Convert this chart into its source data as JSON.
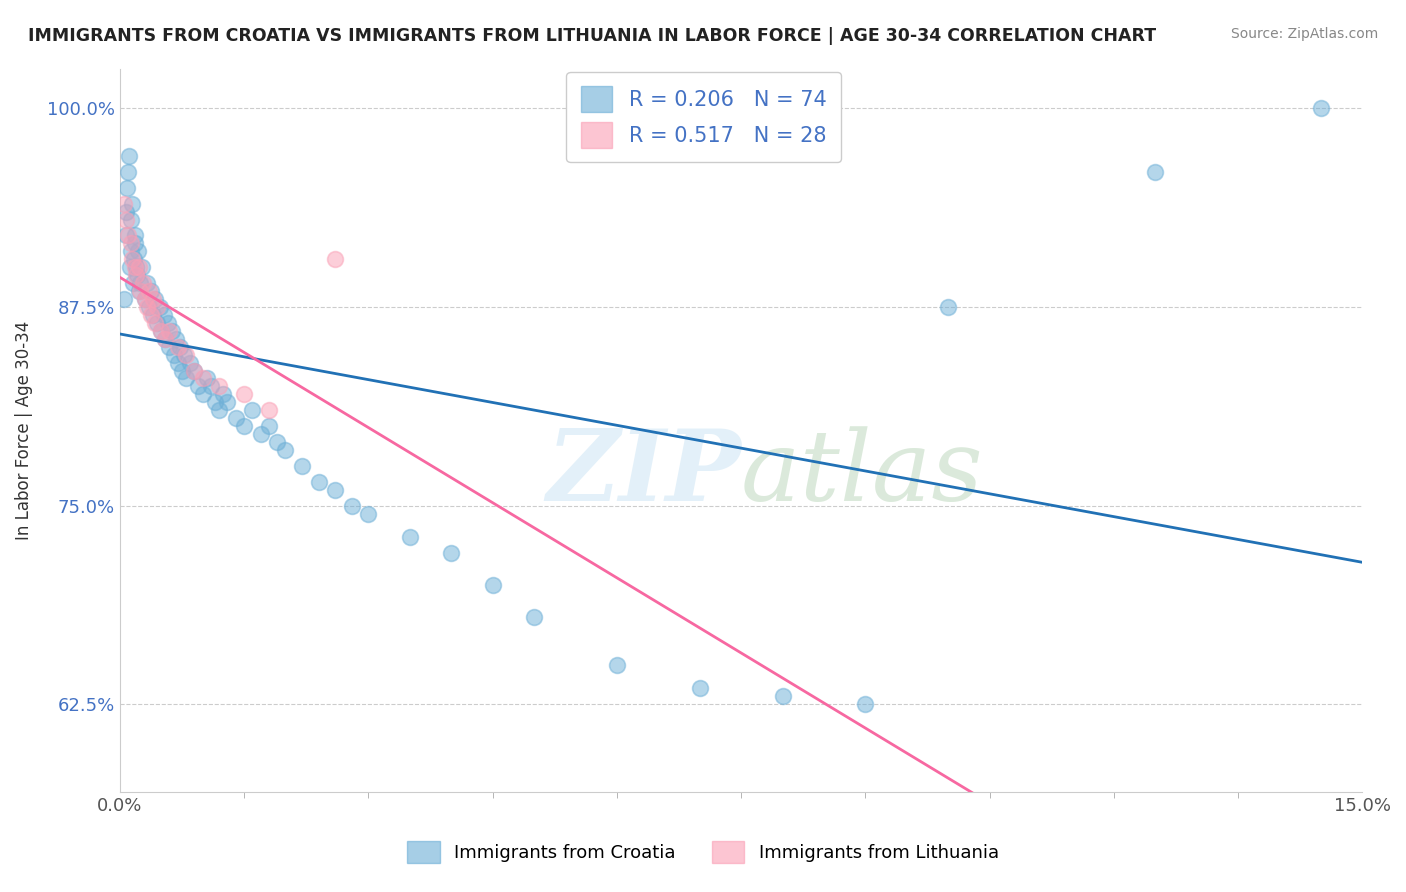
{
  "title": "IMMIGRANTS FROM CROATIA VS IMMIGRANTS FROM LITHUANIA IN LABOR FORCE | AGE 30-34 CORRELATION CHART",
  "source": "Source: ZipAtlas.com",
  "ylabel": "In Labor Force | Age 30-34",
  "croatia_color": "#6baed6",
  "lithuania_color": "#fa9fb5",
  "croatia_line_color": "#2171b5",
  "lithuania_line_color": "#f768a1",
  "croatia_R": 0.206,
  "croatia_N": 74,
  "lithuania_R": 0.517,
  "lithuania_N": 28,
  "legend_label_croatia": "Immigrants from Croatia",
  "legend_label_lithuania": "Immigrants from Lithuania",
  "croatia_x": [
    0.05,
    0.07,
    0.08,
    0.09,
    0.1,
    0.11,
    0.12,
    0.13,
    0.14,
    0.15,
    0.16,
    0.17,
    0.18,
    0.19,
    0.2,
    0.21,
    0.22,
    0.23,
    0.25,
    0.27,
    0.3,
    0.33,
    0.35,
    0.38,
    0.4,
    0.42,
    0.45,
    0.48,
    0.5,
    0.53,
    0.55,
    0.58,
    0.6,
    0.63,
    0.65,
    0.68,
    0.7,
    0.73,
    0.75,
    0.78,
    0.8,
    0.85,
    0.9,
    0.95,
    1.0,
    1.05,
    1.1,
    1.15,
    1.2,
    1.25,
    1.3,
    1.4,
    1.5,
    1.6,
    1.7,
    1.8,
    1.9,
    2.0,
    2.2,
    2.4,
    2.6,
    2.8,
    3.0,
    3.5,
    4.0,
    4.5,
    5.0,
    6.0,
    7.0,
    8.0,
    9.0,
    10.0,
    12.5,
    14.5
  ],
  "croatia_y": [
    88.0,
    92.0,
    93.5,
    95.0,
    96.0,
    97.0,
    90.0,
    91.0,
    93.0,
    94.0,
    89.0,
    90.5,
    92.0,
    91.5,
    90.0,
    89.5,
    91.0,
    88.5,
    89.0,
    90.0,
    88.0,
    89.0,
    87.5,
    88.5,
    87.0,
    88.0,
    86.5,
    87.5,
    86.0,
    87.0,
    85.5,
    86.5,
    85.0,
    86.0,
    84.5,
    85.5,
    84.0,
    85.0,
    83.5,
    84.5,
    83.0,
    84.0,
    83.5,
    82.5,
    82.0,
    83.0,
    82.5,
    81.5,
    81.0,
    82.0,
    81.5,
    80.5,
    80.0,
    81.0,
    79.5,
    80.0,
    79.0,
    78.5,
    77.5,
    76.5,
    76.0,
    75.0,
    74.5,
    73.0,
    72.0,
    70.0,
    68.0,
    65.0,
    63.5,
    63.0,
    62.5,
    87.5,
    96.0,
    100.0
  ],
  "lithuania_x": [
    0.05,
    0.08,
    0.1,
    0.13,
    0.15,
    0.18,
    0.2,
    0.23,
    0.25,
    0.28,
    0.3,
    0.33,
    0.35,
    0.38,
    0.4,
    0.43,
    0.45,
    0.5,
    0.55,
    0.6,
    0.7,
    0.8,
    0.9,
    1.0,
    1.2,
    1.5,
    1.8,
    2.6
  ],
  "lithuania_y": [
    94.0,
    93.0,
    92.0,
    91.5,
    90.5,
    90.0,
    89.5,
    90.0,
    88.5,
    89.0,
    88.0,
    87.5,
    88.5,
    87.0,
    88.0,
    86.5,
    87.5,
    86.0,
    85.5,
    86.0,
    85.0,
    84.5,
    83.5,
    83.0,
    82.5,
    82.0,
    81.0,
    90.5
  ],
  "ytick_vals": [
    62.5,
    75.0,
    87.5,
    100.0
  ],
  "xlim": [
    0.0,
    15.0
  ],
  "ylim": [
    57.0,
    102.5
  ]
}
